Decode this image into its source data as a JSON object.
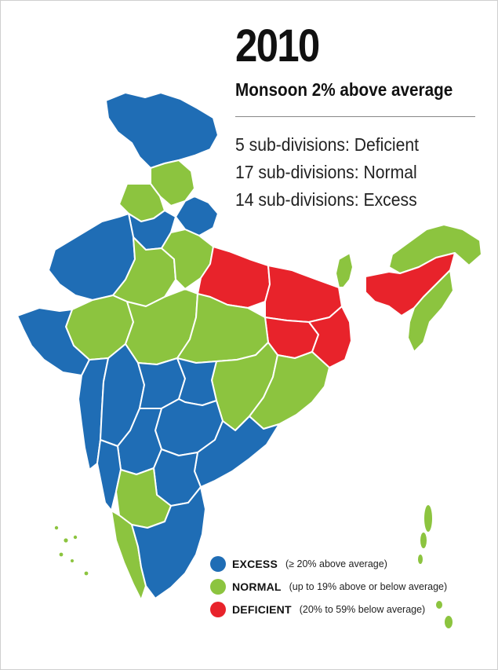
{
  "header": {
    "year": "2010",
    "subtitle": "Monsoon 2% above average"
  },
  "stats": [
    "5 sub-divisions: Deficient",
    "17 sub-divisions: Normal",
    "14 sub-divisions: Excess"
  ],
  "legend": [
    {
      "label": "EXCESS",
      "note": "(≥ 20% above average)",
      "color": "#1f6db5"
    },
    {
      "label": "NORMAL",
      "note": "(up to 19% above or below average)",
      "color": "#8cc43f"
    },
    {
      "label": "DEFICIENT",
      "note": "(20% to 59% below average)",
      "color": "#e8232b"
    }
  ],
  "colors": {
    "excess": "#1f6db5",
    "normal": "#8cc43f",
    "deficient": "#e8232b",
    "borders": "#ffffff"
  }
}
